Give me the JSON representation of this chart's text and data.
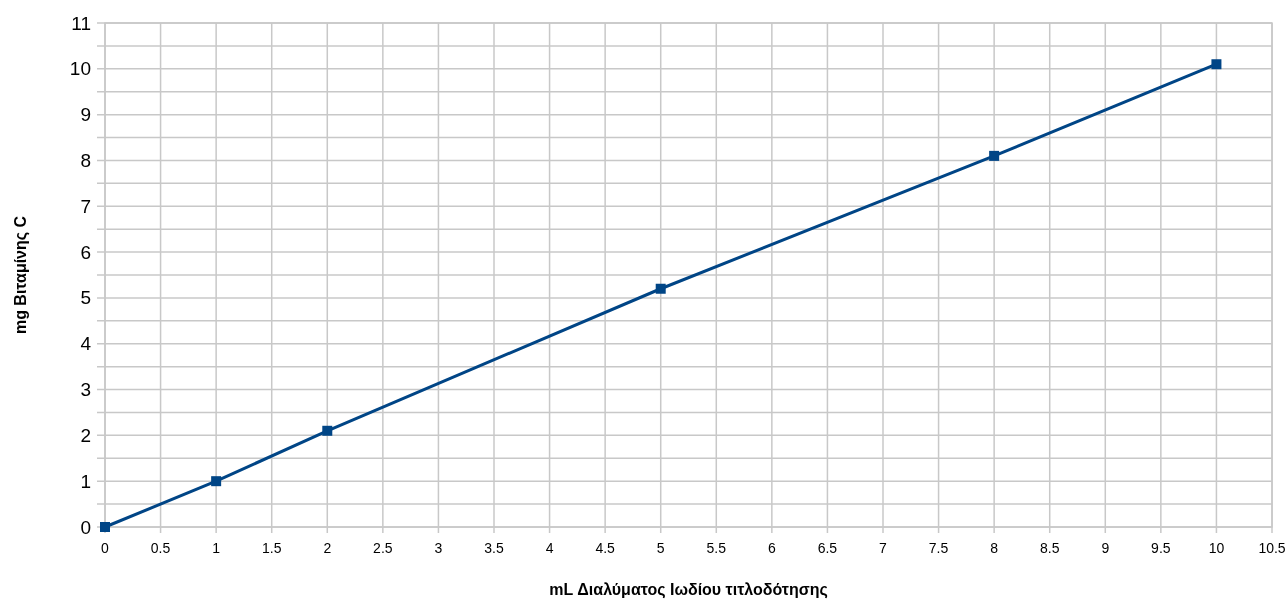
{
  "chart_data": {
    "type": "line",
    "xlabel": "mL Διαλύματος Ιωδίου τιτλοδότησης",
    "ylabel": "mg Βιταμίνης C",
    "x": [
      0,
      1,
      2,
      5,
      8,
      10
    ],
    "series": [
      {
        "color": "#004586",
        "values": [
          0,
          1,
          2.1,
          5.2,
          8.1,
          10.1
        ]
      }
    ],
    "xlim": [
      0,
      10.5
    ],
    "xticks": [
      0,
      {
        "value": 0.5,
        "label": "0.5"
      },
      1,
      {
        "value": 1.5,
        "label": "1.5"
      },
      2,
      {
        "value": 2.5,
        "label": "2.5"
      },
      3,
      {
        "value": 3.5,
        "label": "3.5"
      },
      4,
      {
        "value": 4.5,
        "label": "4.5"
      },
      5,
      {
        "value": 5.5,
        "label": "5.5"
      },
      6,
      {
        "value": 6.5,
        "label": "6.5"
      },
      7,
      {
        "value": 7.5,
        "label": "7.5"
      },
      8,
      {
        "value": 8.5,
        "label": "8.5"
      },
      9,
      {
        "value": 9.5,
        "label": "9.5"
      },
      10,
      {
        "value": 10.5,
        "label": "10.5"
      }
    ],
    "ylim": [
      0,
      11
    ],
    "yticks": [
      0,
      {
        "value": 0.5,
        "label": null
      },
      1,
      {
        "value": 1.5,
        "label": null
      },
      2,
      {
        "value": 2.5,
        "label": null
      },
      3,
      {
        "value": 3.5,
        "label": null
      },
      4,
      {
        "value": 4.5,
        "label": null
      },
      5,
      {
        "value": 5.5,
        "label": null
      },
      6,
      {
        "value": 6.5,
        "label": null
      },
      7,
      {
        "value": 7.5,
        "label": null
      },
      8,
      {
        "value": 8.5,
        "label": null
      },
      9,
      {
        "value": 9.5,
        "label": null
      },
      10,
      {
        "value": 10.5,
        "label": null
      },
      11
    ],
    "grid": true,
    "marker": "square",
    "line_style": "solid"
  }
}
